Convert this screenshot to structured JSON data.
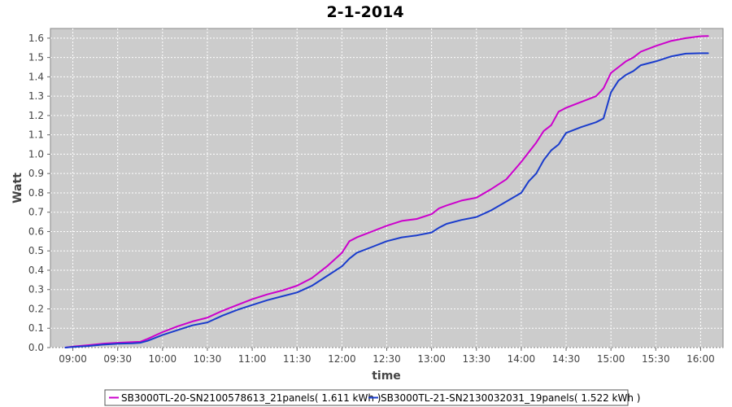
{
  "chart_data": {
    "type": "line",
    "title": "2-1-2014",
    "xlabel": "time",
    "ylabel": "Watt",
    "xlim": [
      "08:45",
      "16:15"
    ],
    "ylim": [
      0,
      1.65
    ],
    "grid": true,
    "legend": "bottom",
    "x_ticks": [
      "09:00",
      "09:30",
      "10:00",
      "10:30",
      "11:00",
      "11:30",
      "12:00",
      "12:30",
      "13:00",
      "13:30",
      "14:00",
      "14:30",
      "15:00",
      "15:30",
      "16:00"
    ],
    "y_ticks": [
      "0.0",
      "0.1",
      "0.2",
      "0.3",
      "0.4",
      "0.5",
      "0.6",
      "0.7",
      "0.8",
      "0.9",
      "1.0",
      "1.1",
      "1.2",
      "1.3",
      "1.4",
      "1.5",
      "1.6"
    ],
    "series": [
      {
        "name": "SB3000TL-20-SN2100578613_21panels( 1.611 kWh )",
        "color": "#cc00cc",
        "x": [
          "08:55",
          "09:00",
          "09:10",
          "09:20",
          "09:30",
          "09:40",
          "09:45",
          "09:50",
          "10:00",
          "10:10",
          "10:20",
          "10:30",
          "10:40",
          "10:50",
          "11:00",
          "11:10",
          "11:20",
          "11:30",
          "11:40",
          "11:50",
          "12:00",
          "12:05",
          "12:10",
          "12:20",
          "12:30",
          "12:40",
          "12:50",
          "13:00",
          "13:05",
          "13:10",
          "13:20",
          "13:30",
          "13:40",
          "13:50",
          "14:00",
          "14:05",
          "14:10",
          "14:15",
          "14:20",
          "14:25",
          "14:30",
          "14:40",
          "14:50",
          "14:55",
          "15:00",
          "15:05",
          "15:10",
          "15:15",
          "15:20",
          "15:30",
          "15:40",
          "15:50",
          "16:00",
          "16:05"
        ],
        "values": [
          0.0,
          0.005,
          0.012,
          0.02,
          0.025,
          0.028,
          0.03,
          0.045,
          0.08,
          0.11,
          0.135,
          0.155,
          0.19,
          0.22,
          0.25,
          0.275,
          0.295,
          0.32,
          0.36,
          0.42,
          0.49,
          0.55,
          0.57,
          0.6,
          0.63,
          0.655,
          0.665,
          0.69,
          0.72,
          0.735,
          0.76,
          0.775,
          0.82,
          0.87,
          0.96,
          1.01,
          1.06,
          1.12,
          1.15,
          1.22,
          1.24,
          1.27,
          1.3,
          1.34,
          1.42,
          1.45,
          1.48,
          1.5,
          1.53,
          1.56,
          1.585,
          1.6,
          1.61,
          1.611
        ]
      },
      {
        "name": "SB3000TL-21-SN2130032031_19panels( 1.522 kWh )",
        "color": "#1a3ccc",
        "x": [
          "08:55",
          "09:00",
          "09:10",
          "09:20",
          "09:30",
          "09:40",
          "09:45",
          "09:50",
          "10:00",
          "10:10",
          "10:20",
          "10:30",
          "10:40",
          "10:50",
          "11:00",
          "11:10",
          "11:20",
          "11:30",
          "11:40",
          "11:50",
          "12:00",
          "12:05",
          "12:10",
          "12:20",
          "12:30",
          "12:40",
          "12:50",
          "13:00",
          "13:05",
          "13:10",
          "13:20",
          "13:30",
          "13:40",
          "13:50",
          "14:00",
          "14:05",
          "14:10",
          "14:15",
          "14:20",
          "14:25",
          "14:30",
          "14:40",
          "14:50",
          "14:55",
          "15:00",
          "15:05",
          "15:10",
          "15:15",
          "15:20",
          "15:30",
          "15:40",
          "15:50",
          "16:00",
          "16:05"
        ],
        "values": [
          0.0,
          0.003,
          0.008,
          0.015,
          0.02,
          0.022,
          0.025,
          0.035,
          0.065,
          0.09,
          0.115,
          0.13,
          0.165,
          0.195,
          0.22,
          0.245,
          0.265,
          0.285,
          0.32,
          0.37,
          0.42,
          0.46,
          0.49,
          0.52,
          0.55,
          0.57,
          0.58,
          0.595,
          0.62,
          0.64,
          0.66,
          0.675,
          0.71,
          0.755,
          0.8,
          0.86,
          0.9,
          0.97,
          1.02,
          1.05,
          1.11,
          1.14,
          1.165,
          1.185,
          1.32,
          1.38,
          1.41,
          1.43,
          1.46,
          1.48,
          1.505,
          1.52,
          1.522,
          1.522
        ]
      }
    ]
  }
}
